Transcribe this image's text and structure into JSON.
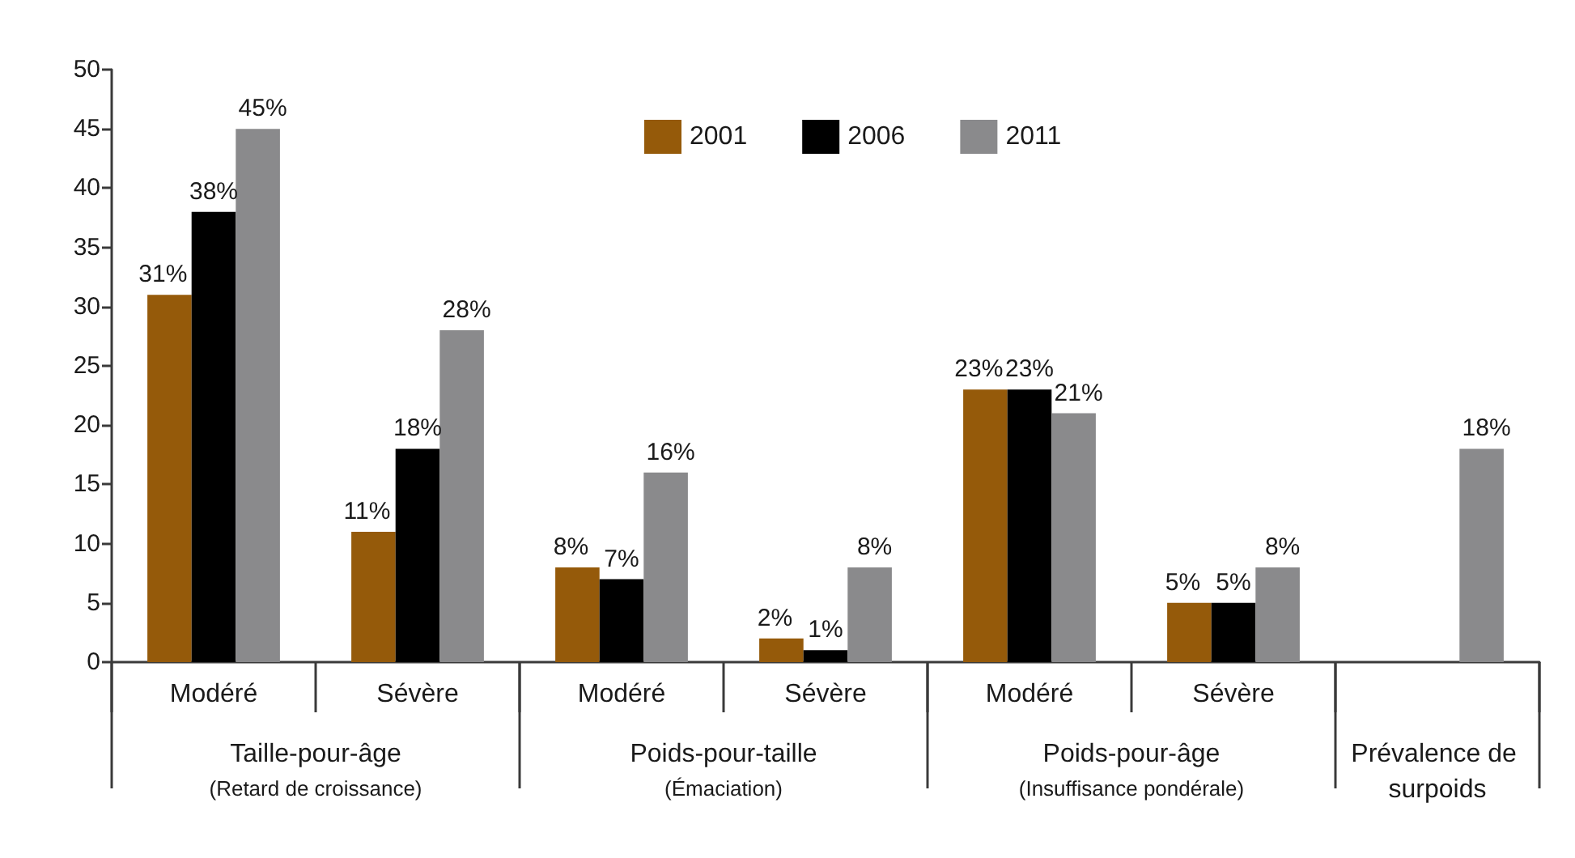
{
  "chart_data": {
    "type": "bar",
    "categories": [
      "Modéré",
      "Sévère",
      "Modéré",
      "Sévère",
      "Modéré",
      "Sévère",
      null
    ],
    "series": [
      {
        "name": "2001",
        "color": "#955a0a",
        "values": [
          31,
          11,
          8,
          2,
          23,
          5,
          null
        ],
        "value_labels": [
          "31%",
          "11%",
          "8%",
          "2%",
          "23%",
          "5%",
          null
        ]
      },
      {
        "name": "2006",
        "color": "#000000",
        "values": [
          38,
          18,
          7,
          1,
          23,
          5,
          null
        ],
        "value_labels": [
          "38%",
          "18%",
          "7%",
          "1%",
          "23%",
          "5%",
          null
        ]
      },
      {
        "name": "2011",
        "color": "#8a8a8c",
        "values": [
          45,
          28,
          16,
          8,
          21,
          8,
          18
        ],
        "value_labels": [
          "45%",
          "28%",
          "16%",
          "8%",
          "21%",
          "8%",
          "18%"
        ]
      }
    ],
    "ylim": [
      0,
      50
    ],
    "yticks": [
      0,
      5,
      10,
      15,
      20,
      25,
      30,
      35,
      40,
      45,
      50
    ],
    "legend": "top",
    "annotations": [
      "Taille-pour-âge\n(Retard de croissance)",
      "Poids-pour-taille\n(Émaciation)",
      "Poids-pour-âge\n(Insuffisance pondérale)",
      "Prévalence de surpoids"
    ]
  }
}
